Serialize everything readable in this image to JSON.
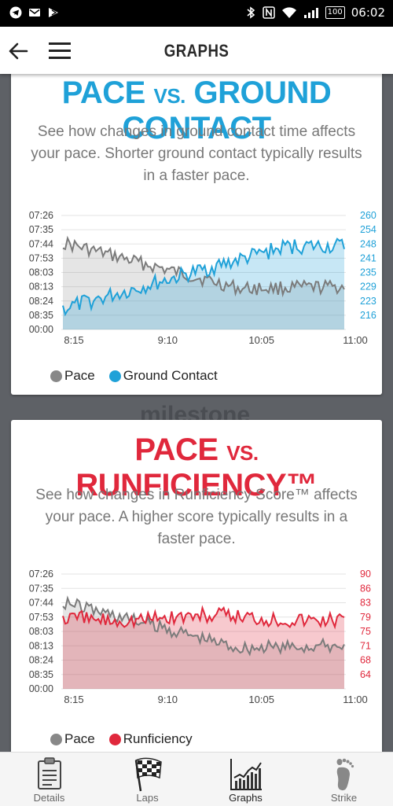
{
  "status_bar": {
    "time": "06:02",
    "battery": "100"
  },
  "app_bar": {
    "title": "GRAPHS"
  },
  "watermark": "milestone",
  "cards": [
    {
      "title_left": "PACE",
      "title_vs": "VS.",
      "title_right": "GROUND CONTACT",
      "description": "See how changes in ground contact time affects your pace. Shorter ground contact typically results in a faster pace.",
      "legend": [
        "Pace",
        "Ground Contact"
      ]
    },
    {
      "title_left": "PACE",
      "title_vs": "VS.",
      "title_right": "RUNFICIENCY™",
      "description": "See how changes in Runficiency Score™ affects your pace. A higher score typically results in a faster pace.",
      "legend": [
        "Pace",
        "Runficiency"
      ]
    }
  ],
  "chart_data": [
    {
      "type": "line",
      "x_ticks": [
        "8:15",
        "9:10",
        "10:05",
        "11:00"
      ],
      "y_left_ticks": [
        "07:26",
        "07:35",
        "07:44",
        "07:53",
        "08:03",
        "08:13",
        "08:24",
        "08:35",
        "00:00"
      ],
      "y_right_ticks": [
        "260",
        "254",
        "248",
        "241",
        "235",
        "229",
        "223",
        "216"
      ],
      "grid": true,
      "legend_position": "bottom",
      "series": [
        {
          "name": "Pace",
          "color": "#888888",
          "axis": "left"
        },
        {
          "name": "Ground Contact",
          "color": "#1fa1d8",
          "axis": "right"
        }
      ]
    },
    {
      "type": "line",
      "x_ticks": [
        "8:15",
        "9:10",
        "10:05",
        "11:00"
      ],
      "y_left_ticks": [
        "07:26",
        "07:35",
        "07:44",
        "07:53",
        "08:03",
        "08:13",
        "08:24",
        "08:35",
        "00:00"
      ],
      "y_right_ticks": [
        "90",
        "86",
        "83",
        "79",
        "75",
        "71",
        "68",
        "64"
      ],
      "grid": true,
      "legend_position": "bottom",
      "series": [
        {
          "name": "Pace",
          "color": "#888888",
          "axis": "left"
        },
        {
          "name": "Runficiency",
          "color": "#e0283c",
          "axis": "right"
        }
      ]
    }
  ],
  "nav": {
    "tabs": [
      {
        "label": "Details",
        "icon": "clipboard-icon"
      },
      {
        "label": "Laps",
        "icon": "checkered-flag-icon"
      },
      {
        "label": "Graphs",
        "icon": "graph-icon"
      },
      {
        "label": "Strike",
        "icon": "footprint-icon"
      }
    ],
    "active": "Graphs"
  }
}
